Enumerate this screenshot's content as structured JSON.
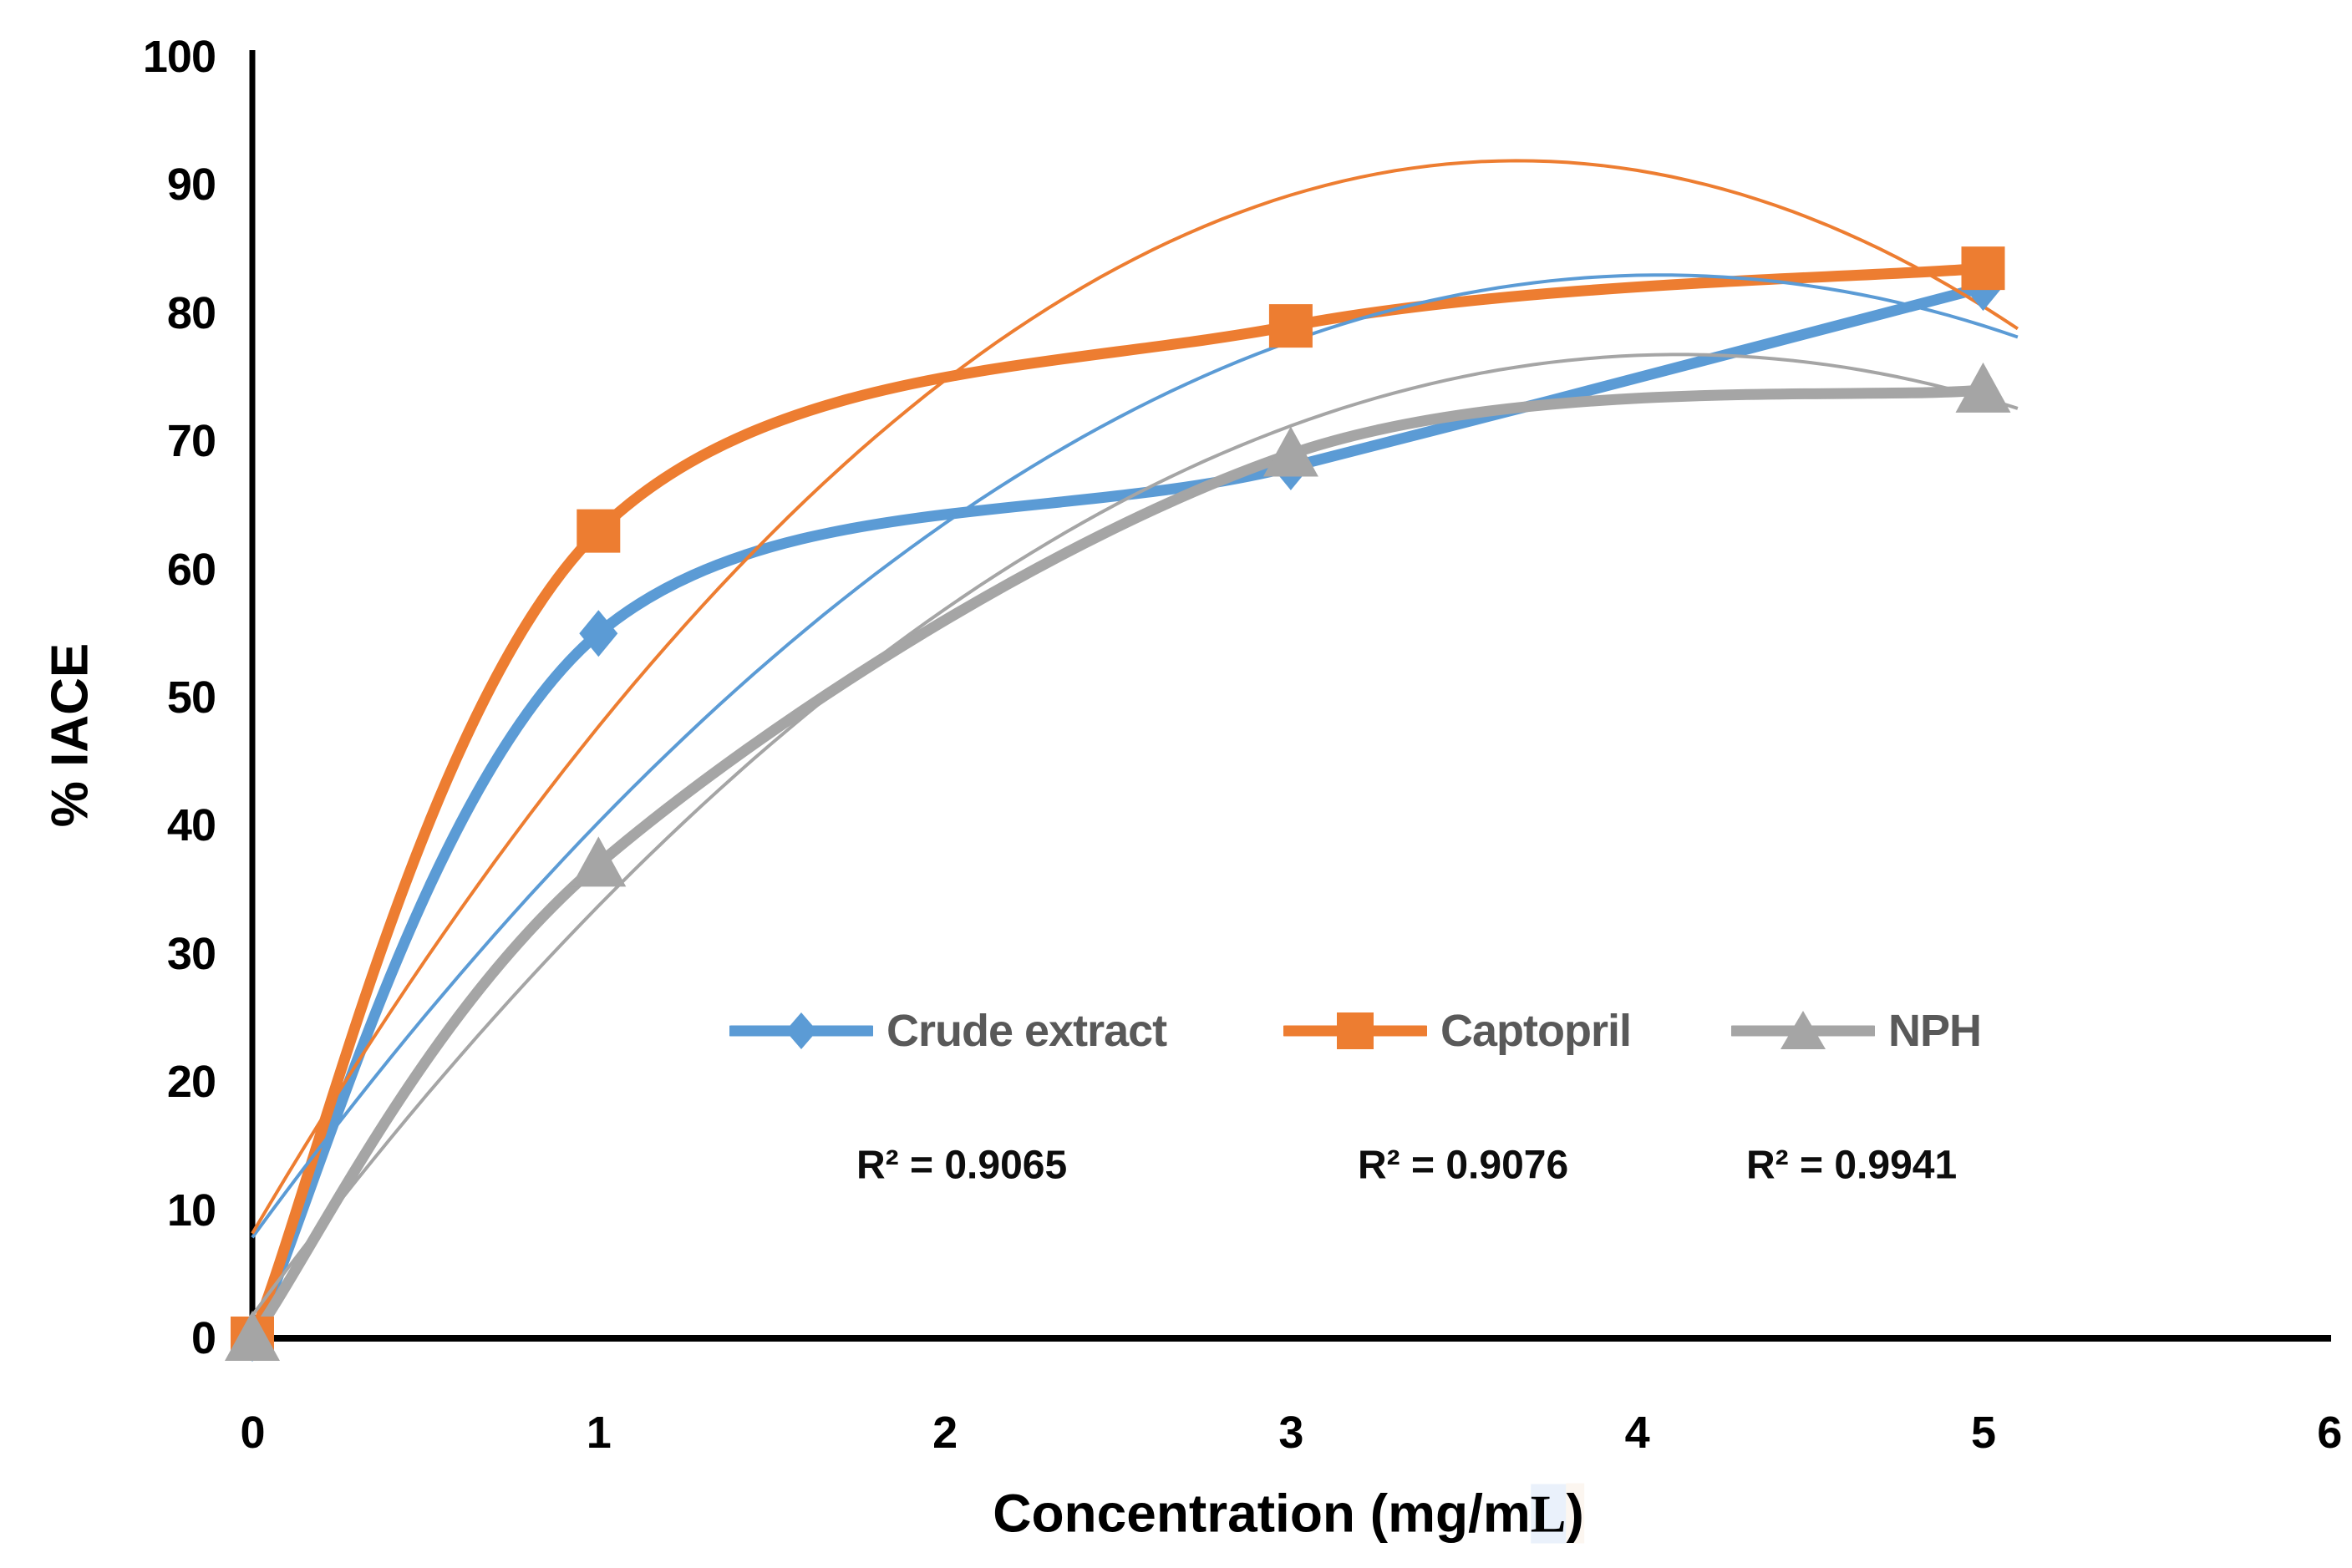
{
  "chart_data": {
    "type": "line",
    "title": "",
    "xlabel": "Concentration (mg/mL)",
    "xlabel_parts": [
      "Concentration (mg/m",
      "L",
      ")"
    ],
    "ylabel": "% IACE",
    "xlim": [
      0,
      6
    ],
    "ylim": [
      0,
      100
    ],
    "x_ticks": [
      "0",
      "1",
      "2",
      "3",
      "4",
      "5",
      "6"
    ],
    "y_ticks": [
      "0",
      "10",
      "20",
      "30",
      "40",
      "50",
      "60",
      "70",
      "80",
      "90",
      "100"
    ],
    "grid": false,
    "legend_position": "inside-bottom-center",
    "x": [
      0,
      1,
      3,
      5
    ],
    "series": [
      {
        "name": "Crude extract",
        "color": "#5B9BD5",
        "marker": "diamond",
        "values": [
          0,
          55,
          68,
          82
        ],
        "r_squared_label": "R² = 0.9065",
        "trendline": {
          "type": "polynomial-2",
          "a": -4.54,
          "b": 36.93,
          "c": 7.87
        }
      },
      {
        "name": "Captopril",
        "color": "#ED7D31",
        "marker": "square",
        "values": [
          0,
          63,
          79,
          83.5
        ],
        "r_squared_label": "R² = 0.9076",
        "trendline": {
          "type": "polynomial-2",
          "a": -6.27,
          "b": 45.82,
          "c": 8.18
        }
      },
      {
        "name": "NPH",
        "color": "#A5A5A5",
        "marker": "triangle",
        "values": [
          0,
          37,
          69,
          74
        ],
        "r_squared_label": "R² = 0.9941",
        "trendline": {
          "type": "polynomial-2",
          "a": -4.41,
          "b": 36.37,
          "c": 1.78
        }
      }
    ]
  },
  "colors": {
    "axis": "#000000",
    "tick_text": "#000000",
    "legend_text": "#595959",
    "r2_text": "#0d0d0d",
    "background": "#FFFFFF"
  }
}
